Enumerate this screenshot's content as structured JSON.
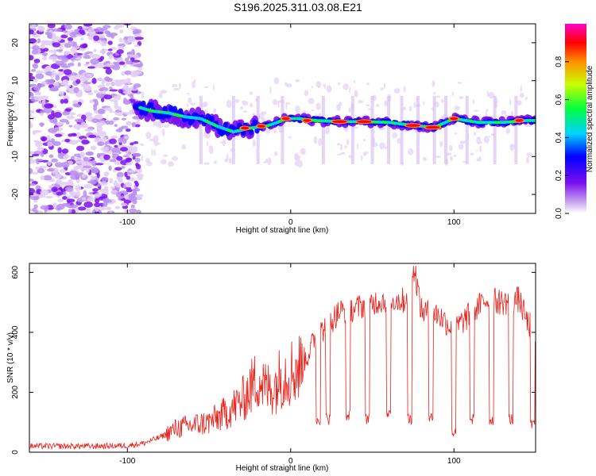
{
  "figure_title": "S196.2025.311.03.08.E21",
  "chart_data": [
    {
      "type": "heatmap",
      "panel": "top",
      "title": "",
      "xlabel": "Height of straight line (km)",
      "ylabel": "Frequency (Hz)",
      "xlim": [
        -160,
        150
      ],
      "ylim": [
        -25,
        25
      ],
      "x_ticks": [
        -100,
        0,
        100
      ],
      "y_ticks": [
        20,
        10,
        0,
        -10,
        -20
      ],
      "colorbar": {
        "label": "Normalized spectral amplitude",
        "range": [
          0.0,
          1.0
        ],
        "ticks": [
          0.0,
          0.2,
          0.4,
          0.6,
          0.8
        ],
        "tick_labels": [
          "0.0",
          "0.2",
          "0.4",
          "0.6",
          "0.8"
        ]
      },
      "ridge": {
        "description_points_x": [
          -93,
          -85,
          -75,
          -65,
          -55,
          -45,
          -35,
          -25,
          -15,
          -8,
          -3,
          5,
          15,
          30,
          45,
          60,
          75,
          88,
          100,
          115,
          130,
          145
        ],
        "description_points_y": [
          3,
          2,
          1.5,
          0.5,
          0,
          -2,
          -3.5,
          -2.5,
          -2,
          -1,
          0,
          0,
          -0.5,
          -0.8,
          -0.8,
          -1,
          -1.8,
          -2.3,
          0,
          -1,
          -1,
          -0.5
        ],
        "peak_amplitude_x": [
          -28,
          -18,
          -3,
          10,
          30,
          45,
          75,
          87,
          100,
          140
        ],
        "peak_amplitude_y": [
          -2.5,
          -2,
          0,
          -0.5,
          -0.8,
          -0.8,
          -1.8,
          -2.3,
          0,
          -0.5
        ]
      }
    },
    {
      "type": "line",
      "panel": "bottom",
      "title": "",
      "xlabel": "Height of straight line (km)",
      "ylabel": "SNR (10 * v/v)",
      "xlim": [
        -160,
        150
      ],
      "ylim": [
        0,
        630
      ],
      "x_ticks": [
        -100,
        0,
        100
      ],
      "y_ticks": [
        0,
        200,
        400,
        600
      ],
      "series": [
        {
          "name": "SNR",
          "color": "#e8221c",
          "x": [
            -160,
            -140,
            -120,
            -100,
            -90,
            -80,
            -70,
            -60,
            -50,
            -40,
            -30,
            -20,
            -15,
            -10,
            -5,
            0,
            5,
            10,
            15,
            20,
            25,
            30,
            40,
            50,
            60,
            70,
            76,
            80,
            90,
            100,
            110,
            120,
            130,
            140,
            145,
            150
          ],
          "values": [
            20,
            20,
            20,
            22,
            30,
            50,
            80,
            90,
            100,
            130,
            170,
            250,
            210,
            220,
            260,
            270,
            280,
            320,
            380,
            410,
            440,
            470,
            480,
            500,
            510,
            505,
            610,
            470,
            460,
            410,
            460,
            510,
            500,
            510,
            430,
            410
          ],
          "dropouts_x": [
            17,
            23,
            35,
            47,
            60,
            73,
            86,
            100,
            111,
            123,
            135,
            148
          ],
          "dropouts_y": [
            110,
            110,
            120,
            110,
            120,
            110,
            120,
            65,
            110,
            110,
            110,
            90
          ]
        }
      ]
    }
  ],
  "colors": {
    "series_line": "#e8221c",
    "axes": "#000000",
    "background": "#ffffff"
  }
}
